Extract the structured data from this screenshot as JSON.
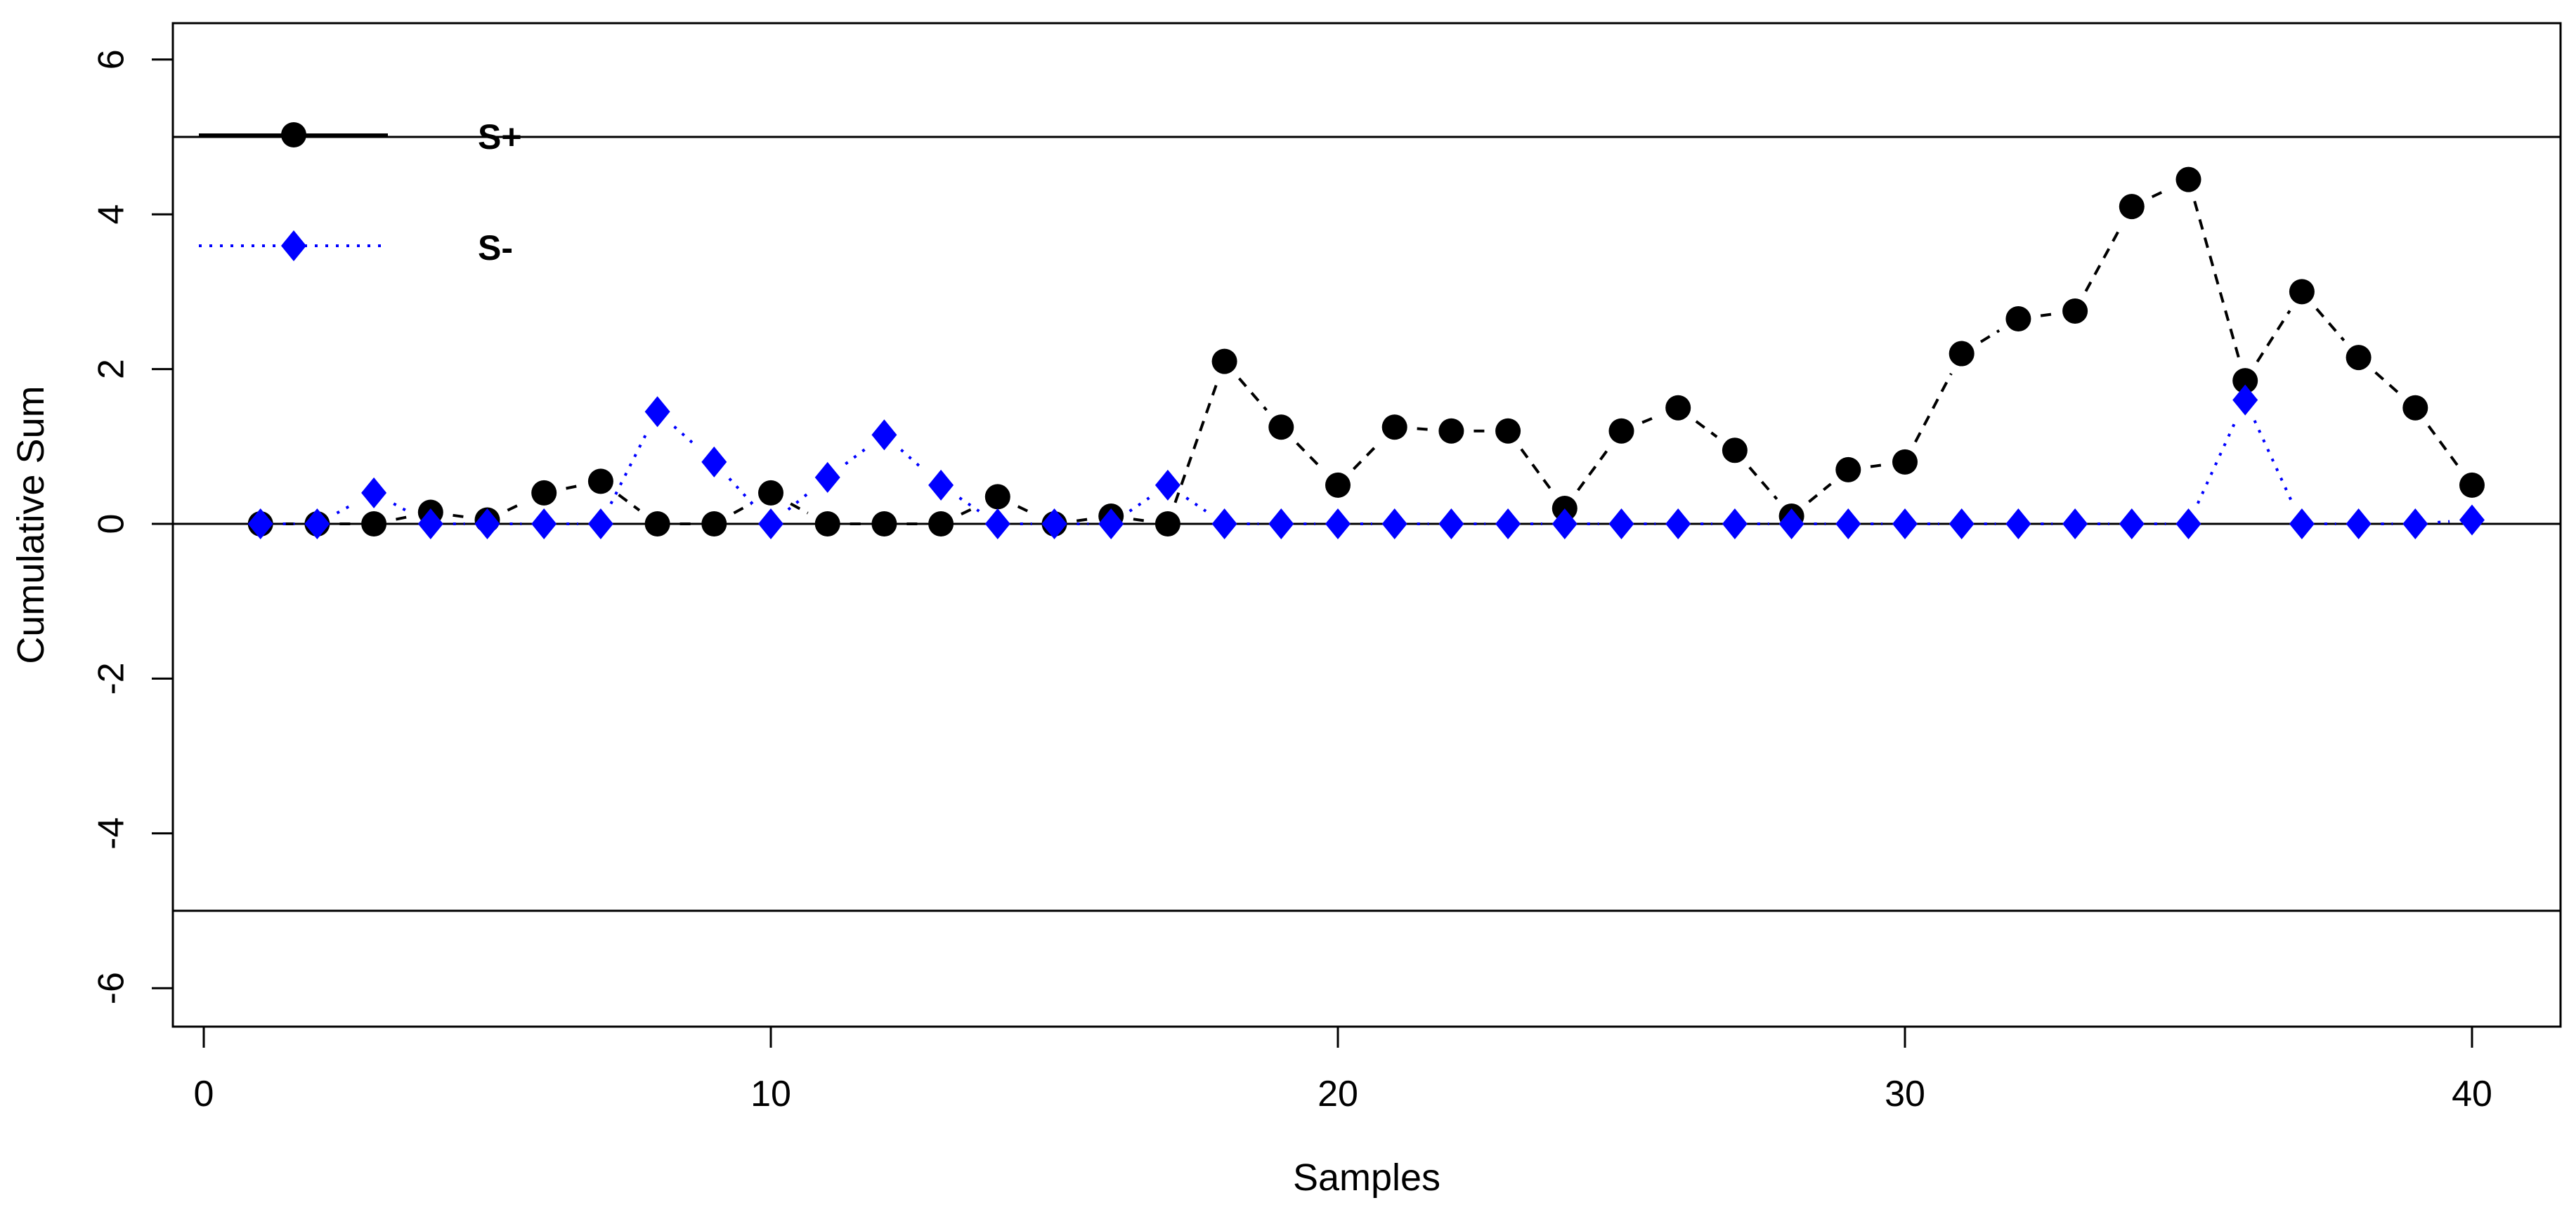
{
  "chart_data": {
    "type": "line",
    "title": "",
    "xlabel": "Samples",
    "ylabel": "Cumulative Sum",
    "x": [
      1,
      2,
      3,
      4,
      5,
      6,
      7,
      8,
      9,
      10,
      11,
      12,
      13,
      14,
      15,
      16,
      17,
      18,
      19,
      20,
      21,
      22,
      23,
      24,
      25,
      26,
      27,
      28,
      29,
      30,
      31,
      32,
      33,
      34,
      35,
      36,
      37,
      38,
      39,
      40
    ],
    "series": [
      {
        "name": "S+",
        "marker": "circle",
        "color": "#000000",
        "line_style": "dashed",
        "values": [
          0,
          0,
          0,
          0.15,
          0.05,
          0.4,
          0.55,
          0,
          0,
          0.4,
          0,
          0,
          0,
          0.35,
          0,
          0.1,
          0,
          2.1,
          1.25,
          0.5,
          1.25,
          1.2,
          1.2,
          0.2,
          1.2,
          1.5,
          0.95,
          0.1,
          0.7,
          0.8,
          2.2,
          2.65,
          2.75,
          4.1,
          4.45,
          1.85,
          3.0,
          2.15,
          1.5,
          0.5
        ]
      },
      {
        "name": "S-",
        "marker": "diamond",
        "color": "#0000FF",
        "line_style": "dotted",
        "values": [
          0,
          0,
          0.4,
          0,
          0,
          0,
          0,
          1.45,
          0.8,
          0,
          0.6,
          1.15,
          0.5,
          0,
          0,
          0,
          0.5,
          0,
          0,
          0,
          0,
          0,
          0,
          0,
          0,
          0,
          0,
          0,
          0,
          0,
          0,
          0,
          0,
          0,
          0,
          1.6,
          0,
          0,
          0,
          0.05
        ]
      }
    ],
    "xticks": [
      0,
      10,
      20,
      30,
      40
    ],
    "yticks": [
      6,
      4,
      2,
      0,
      -2,
      -4,
      -6
    ],
    "xlim": [
      -1.5,
      41.8
    ],
    "ylim": [
      -6.5,
      6.5
    ],
    "center_line": 0,
    "control_limits": {
      "upper": 5,
      "lower": -5
    },
    "legend": {
      "position": "top-left",
      "entries": [
        "S+",
        "S-"
      ]
    },
    "grid": false,
    "background": "#ffffff",
    "axis_color": "#000000"
  }
}
